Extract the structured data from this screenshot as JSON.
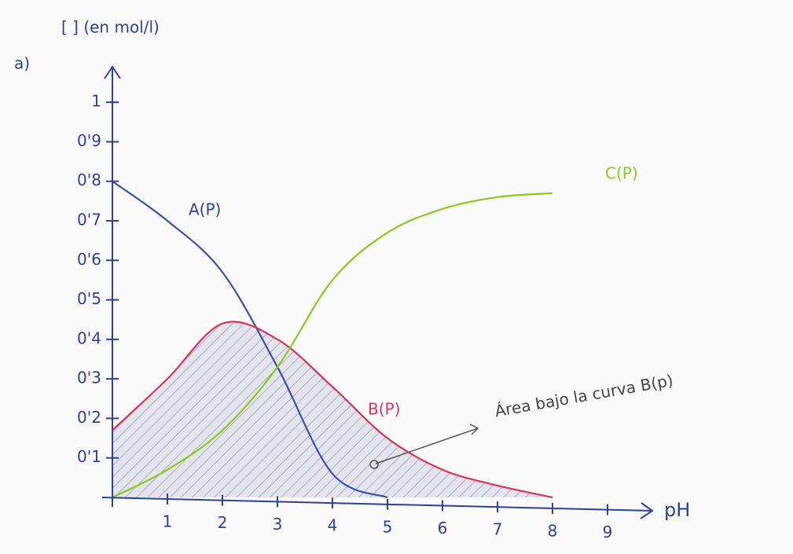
{
  "chart_data": {
    "type": "line",
    "panel_label": "a)",
    "y_label": "[ ] (en mol/l)",
    "x_label": "pH",
    "annotation": "Área bajo la curva B(p)",
    "x": [
      0,
      1,
      2,
      3,
      4,
      5,
      6,
      7,
      8
    ],
    "series": [
      {
        "name": "A(P)",
        "color": "#3b4fb0",
        "values": [
          0.8,
          0.7,
          0.57,
          0.33,
          0.06,
          0,
          null,
          null,
          null
        ]
      },
      {
        "name": "B(P)",
        "color": "#d8345f",
        "values": [
          0.17,
          0.3,
          0.44,
          0.4,
          0.28,
          0.15,
          0.07,
          0.03,
          0
        ]
      },
      {
        "name": "C(P)",
        "color": "#8cc91e",
        "values": [
          0,
          0.07,
          0.17,
          0.33,
          0.55,
          0.67,
          0.73,
          0.76,
          0.77
        ]
      }
    ],
    "shaded_series": 1,
    "xlim": [
      0,
      9.6
    ],
    "ylim": [
      0,
      1.05
    ],
    "xticks": [
      1,
      2,
      3,
      4,
      5,
      6,
      7,
      8,
      9
    ],
    "yticks": [
      {
        "value": 0.1,
        "label": "0'1"
      },
      {
        "value": 0.2,
        "label": "0'2"
      },
      {
        "value": 0.3,
        "label": "0'3"
      },
      {
        "value": 0.4,
        "label": "0'4"
      },
      {
        "value": 0.5,
        "label": "0'5"
      },
      {
        "value": 0.6,
        "label": "0'6"
      },
      {
        "value": 0.7,
        "label": "0'7"
      },
      {
        "value": 0.8,
        "label": "0'8"
      },
      {
        "value": 0.9,
        "label": "0'9"
      },
      1
    ]
  }
}
